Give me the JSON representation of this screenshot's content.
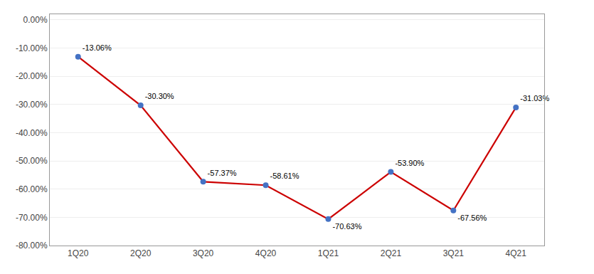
{
  "chart_data": {
    "type": "line",
    "categories": [
      "1Q20",
      "2Q20",
      "3Q20",
      "4Q20",
      "1Q21",
      "2Q21",
      "3Q21",
      "4Q21"
    ],
    "values": [
      -13.06,
      -30.3,
      -57.37,
      -58.61,
      -70.63,
      -53.9,
      -67.56,
      -31.03
    ],
    "value_labels": [
      "-13.06%",
      "-30.30%",
      "-57.37%",
      "-58.61%",
      "-70.63%",
      "-53.90%",
      "-67.56%",
      "-31.03%"
    ],
    "data_labels": true,
    "color": "#CC0000",
    "colors": [
      "#4472C4",
      "#4472C4",
      "#4472C4",
      "#4472C4",
      "#4472C4",
      "#4472C4",
      "#4472C4",
      "#4472C4"
    ],
    "marker": "circle",
    "ylim": [
      -80,
      2
    ],
    "yticks": [
      {
        "value": 0,
        "label": "0.00%"
      },
      {
        "value": -10,
        "label": "-10.00%"
      },
      {
        "value": -20,
        "label": "-20.00%"
      },
      {
        "value": -30,
        "label": "-30.00%"
      },
      {
        "value": -40,
        "label": "-40.00%"
      },
      {
        "value": -50,
        "label": "-50.00%"
      },
      {
        "value": -60,
        "label": "-60.00%"
      },
      {
        "value": -70,
        "label": "-70.00%"
      },
      {
        "value": -80,
        "label": "-80.00%"
      }
    ],
    "grid": true
  }
}
